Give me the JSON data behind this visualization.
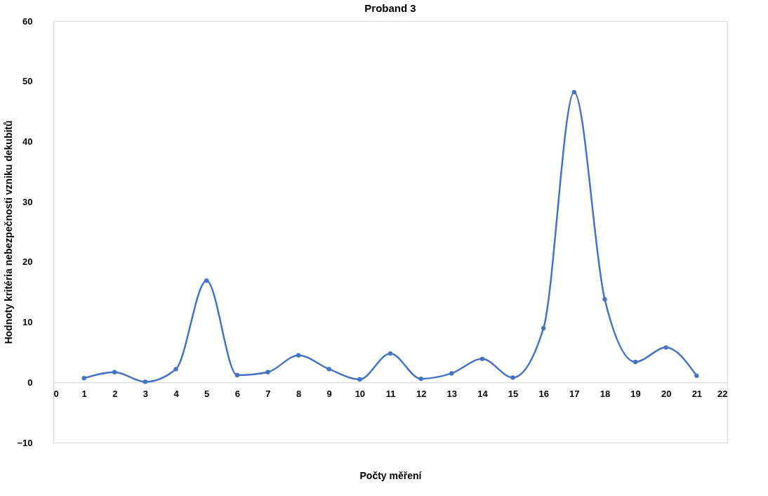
{
  "chart_data": {
    "type": "line",
    "title": "Proband 3",
    "xlabel": "Počty měření",
    "ylabel": "Hodnoty kritéria nebezpečnosti vzniku dekubitů",
    "x": [
      1,
      2,
      3,
      4,
      5,
      6,
      7,
      8,
      9,
      10,
      11,
      12,
      13,
      14,
      15,
      16,
      17,
      18,
      19,
      20,
      21
    ],
    "series": [
      {
        "color": "#4472c4",
        "values": [
          0.7,
          1.7,
          0.1,
          2.2,
          16.9,
          1.2,
          1.7,
          4.5,
          2.2,
          0.5,
          4.8,
          0.6,
          1.5,
          3.9,
          0.8,
          9.0,
          48.2,
          13.8,
          3.4,
          5.8,
          1.1
        ]
      }
    ],
    "xlim": [
      0,
      22
    ],
    "xticks": [
      0,
      1,
      2,
      3,
      4,
      5,
      6,
      7,
      8,
      9,
      10,
      11,
      12,
      13,
      14,
      15,
      16,
      17,
      18,
      19,
      20,
      21,
      22
    ],
    "ylim": [
      -10,
      60
    ],
    "yticks": [
      -10,
      0,
      10,
      20,
      30,
      40,
      50,
      60
    ],
    "grid": false,
    "marker": "circle",
    "line_style": "solid"
  }
}
